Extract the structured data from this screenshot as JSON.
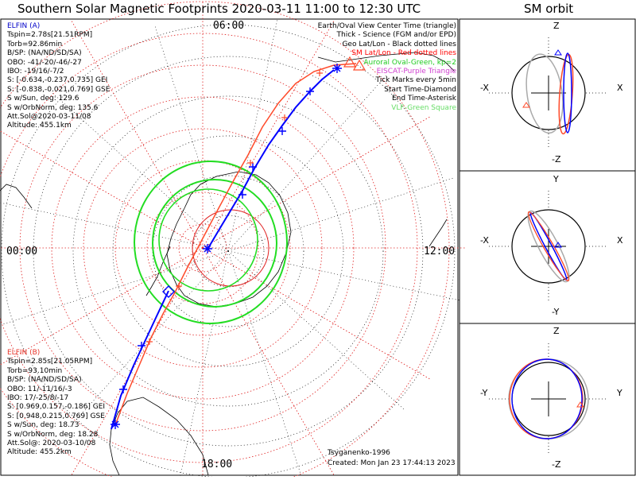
{
  "title": "Southern Solar Magnetic Footprints 2020-03-11 11:00 to 12:30 UTC",
  "orbit_title": "SM orbit",
  "time_labels": {
    "top": "06:00",
    "left": "00:00",
    "right": "12:00",
    "bottom": "18:00"
  },
  "legend": [
    {
      "text": "Earth/Oval View Center Time (triangle)",
      "color": "black"
    },
    {
      "text": "Thick - Science (FGM and/or EPD)",
      "color": "black"
    },
    {
      "text": "Geo Lat/Lon - Black dotted lines",
      "color": "black"
    },
    {
      "text": "SM Lat/Lon - Red dotted lines",
      "color": "redbold"
    },
    {
      "text": "Auroral Oval-Green, kp=2",
      "color": "green"
    },
    {
      "text": "EISCAT-Purple Triangle",
      "color": "purple"
    },
    {
      "text": "Tick Marks every 5min",
      "color": "black"
    },
    {
      "text": "Start Time-Diamond",
      "color": "black"
    },
    {
      "text": "End Time-Asterisk",
      "color": "black"
    },
    {
      "text": "VLF-Green Square",
      "color": "lgreen"
    }
  ],
  "elfin_a": {
    "name": "ELFIN (A)",
    "lines": [
      "Tspin=2.78s[21.51RPM]",
      "Torb=92.86min",
      "B/SP: (NA/ND/SD/SA)",
      "OBO: -41/-20/-46/-27",
      "IBO: -19/16/-7/2",
      "S: [-0.634,-0.237,0.735] GEI",
      "S: [-0.838,-0.021,0.769] GSE",
      "S w/Sun, deg: 129.6",
      "S w/OrbNorm, deg: 135.6",
      "Att.Sol@2020-03-11/08",
      "Altitude: 455.1km"
    ]
  },
  "elfin_b": {
    "name": "ELFIN (B)",
    "lines": [
      "Tspin=2.85s[21.05RPM]",
      "Torb=93.10min",
      "B/SP: (NA/ND/SD/SA)",
      "OBO: 11/-11/16/-3",
      "IBO: 17/-25/8/-17",
      "S: [0.969,0.157,-0.186] GEI",
      "S: [0.948,0.215,0.769] GSE",
      "S w/Sun, deg: 18.73",
      "S w/OrbNorm, deg: 18.28",
      "Att.Sol@: 2020-03-10/08",
      "Altitude: 455.2km"
    ]
  },
  "credit": "Tsyganenko-1996",
  "created": "Created: Mon Jan 23 17:44:13 2023",
  "orbit_panels": [
    {
      "top": "Z",
      "bottom": "-Z",
      "left": "-X",
      "right": "X"
    },
    {
      "top": "Y",
      "bottom": "-Y",
      "left": "-X",
      "right": "X"
    },
    {
      "top": "Z",
      "bottom": "-Z",
      "left": "-Y",
      "right": "Y"
    }
  ],
  "colors": {
    "elfin_a": "#0000ff",
    "elfin_b": "#ff4a2a",
    "sm_grid": "#e02020",
    "geo_grid": "#000000",
    "oval": "#22dd22",
    "orbit_grey": "#aaaaaa"
  }
}
